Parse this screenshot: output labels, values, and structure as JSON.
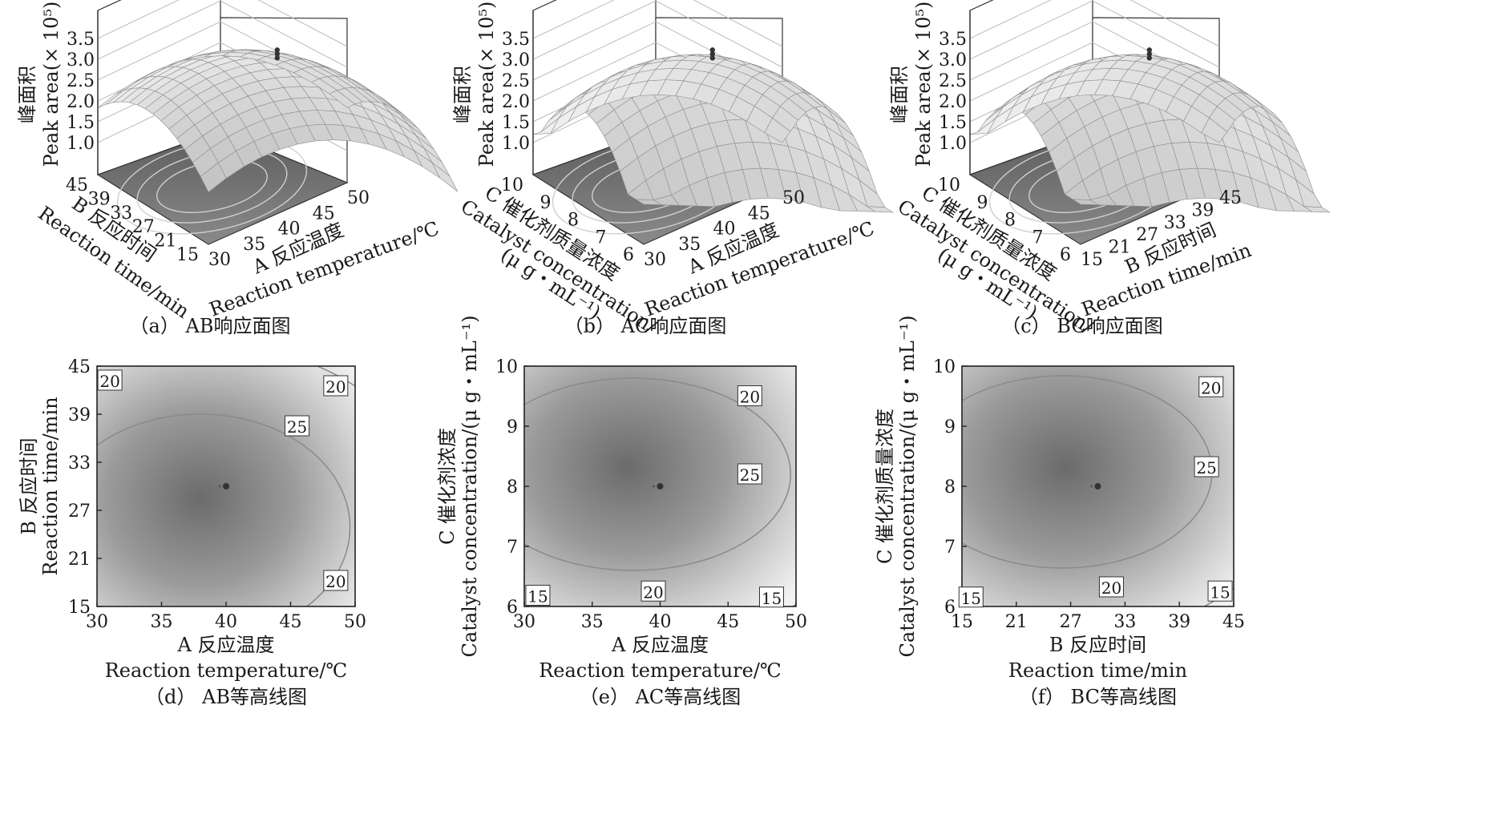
{
  "chart_data": [
    {
      "id": "a",
      "type": "surface",
      "caption": "（a） AB响应面图",
      "zlabel_cn": "峰面积",
      "zlabel_en": "Peak area(× 10⁵)",
      "zticks": [
        "1.0",
        "1.5",
        "2.0",
        "2.5",
        "3.0",
        "3.5"
      ],
      "xlabel_cn": "A 反应温度",
      "xlabel_en": "Reaction temperature/℃",
      "xticks": [
        "30",
        "35",
        "40",
        "45",
        "50"
      ],
      "ylabel_cn": "B 反应时间",
      "ylabel_en": "Reaction time/min",
      "yticks": [
        "15",
        "21",
        "27",
        "33",
        "39",
        "45"
      ],
      "peak": 3.0
    },
    {
      "id": "b",
      "type": "surface",
      "caption": "（b） AC响应面图",
      "zlabel_cn": "峰面积",
      "zlabel_en": "Peak area(× 10⁵)",
      "zticks": [
        "1.0",
        "1.5",
        "2.0",
        "2.5",
        "3.0",
        "3.5"
      ],
      "xlabel_cn": "A 反应温度",
      "xlabel_en": "Reaction temperature/℃",
      "xticks": [
        "30",
        "35",
        "40",
        "45",
        "50"
      ],
      "ylabel_cn": "C 催化剂质量浓度",
      "ylabel_en": "Catalyst concentration/",
      "ylabel_unit": "(μ g・mL⁻¹)",
      "yticks": [
        "6",
        "7",
        "8",
        "9",
        "10"
      ],
      "peak": 3.0
    },
    {
      "id": "c",
      "type": "surface",
      "caption": "（c） BC响应面图",
      "zlabel_cn": "峰面积",
      "zlabel_en": "Peak area(× 10⁵)",
      "zticks": [
        "1.0",
        "1.5",
        "2.0",
        "2.5",
        "3.0",
        "3.5"
      ],
      "xlabel_cn": "B 反应时间",
      "xlabel_en": "Reaction time/min",
      "xticks": [
        "15",
        "21",
        "27",
        "33",
        "39",
        "45"
      ],
      "ylabel_cn": "C 催化剂质量浓度",
      "ylabel_en": "Catalyst concentration/",
      "ylabel_unit": "(μ g・mL⁻¹)",
      "yticks": [
        "6",
        "7",
        "8",
        "9",
        "10"
      ],
      "peak": 3.0
    },
    {
      "id": "d",
      "type": "contour",
      "caption": "（d） AB等高线图",
      "xlabel_cn": "A 反应温度",
      "xlabel_en": "Reaction temperature/℃",
      "ylabel_cn": "B 反应时间",
      "ylabel_en": "Reaction time/min",
      "xticks": [
        "30",
        "35",
        "40",
        "45",
        "50"
      ],
      "xlim": [
        30,
        50
      ],
      "yticks": [
        "15",
        "21",
        "27",
        "33",
        "39",
        "45"
      ],
      "ylim": [
        15,
        45
      ],
      "center_point": {
        "x": 40,
        "y": 30
      },
      "contour_labels": [
        {
          "text": "20",
          "x": 31,
          "y": 43.2
        },
        {
          "text": "20",
          "x": 48.5,
          "y": 42.5
        },
        {
          "text": "25",
          "x": 45.5,
          "y": 37.5
        },
        {
          "text": "20",
          "x": 48.5,
          "y": 18.2
        }
      ]
    },
    {
      "id": "e",
      "type": "contour",
      "caption": "（e） AC等高线图",
      "xlabel_cn": "A 反应温度",
      "xlabel_en": "Reaction temperature/℃",
      "ylabel_cn": "C 催化剂浓度",
      "ylabel_en": "Catalyst concentration/(μ g・mL⁻¹)",
      "xticks": [
        "30",
        "35",
        "40",
        "45",
        "50"
      ],
      "xlim": [
        30,
        50
      ],
      "yticks": [
        "6",
        "7",
        "8",
        "9",
        "10"
      ],
      "ylim": [
        6,
        10
      ],
      "center_point": {
        "x": 40,
        "y": 8
      },
      "contour_labels": [
        {
          "text": "20",
          "x": 46.6,
          "y": 9.5
        },
        {
          "text": "25",
          "x": 46.6,
          "y": 8.2
        },
        {
          "text": "20",
          "x": 39.5,
          "y": 6.25
        },
        {
          "text": "15",
          "x": 31,
          "y": 6.18
        },
        {
          "text": "15",
          "x": 48.2,
          "y": 6.15
        }
      ]
    },
    {
      "id": "f",
      "type": "contour",
      "caption": "（f） BC等高线图",
      "xlabel_cn": "B 反应时间",
      "xlabel_en": "Reaction time/min",
      "ylabel_cn": "C 催化剂质量浓度",
      "ylabel_en": "Catalyst concentration/(μ g・mL⁻¹)",
      "xticks": [
        "15",
        "21",
        "27",
        "33",
        "39",
        "45"
      ],
      "xlim": [
        15,
        45
      ],
      "yticks": [
        "6",
        "7",
        "8",
        "9",
        "10"
      ],
      "ylim": [
        6,
        10
      ],
      "center_point": {
        "x": 30,
        "y": 8
      },
      "contour_labels": [
        {
          "text": "20",
          "x": 42.5,
          "y": 9.65
        },
        {
          "text": "25",
          "x": 42,
          "y": 8.32
        },
        {
          "text": "20",
          "x": 31.5,
          "y": 6.32
        },
        {
          "text": "15",
          "x": 16,
          "y": 6.15
        },
        {
          "text": "15",
          "x": 43.5,
          "y": 6.25
        }
      ]
    }
  ]
}
